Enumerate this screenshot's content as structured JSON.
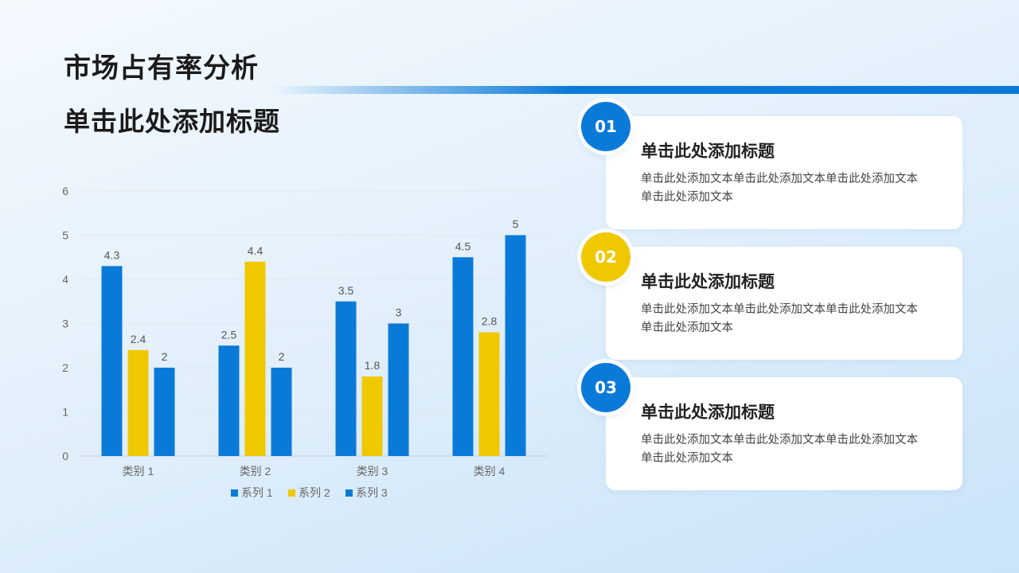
{
  "header": {
    "title": "市场占有率分析",
    "subtitle": "单击此处添加标题"
  },
  "colors": {
    "blue": "#0a7ad9",
    "yellow": "#f0c800"
  },
  "chart_data": {
    "type": "bar",
    "categories": [
      "类别 1",
      "类别 2",
      "类别 3",
      "类别 4"
    ],
    "series": [
      {
        "name": "系列 1",
        "values": [
          4.3,
          2.5,
          3.5,
          4.5
        ],
        "color": "#0a7ad9"
      },
      {
        "name": "系列 2",
        "values": [
          2.4,
          4.4,
          1.8,
          2.8
        ],
        "color": "#f0c800"
      },
      {
        "name": "系列 3",
        "values": [
          2,
          2,
          3,
          5
        ],
        "color": "#0a7ad9"
      }
    ],
    "ylim": [
      0,
      6
    ],
    "yticks": [
      0,
      1,
      2,
      3,
      4,
      5,
      6
    ],
    "grid": true,
    "data_labels": true,
    "legend": "bottom"
  },
  "cards": [
    {
      "number": "01",
      "title": "单击此处添加标题",
      "text": "单击此处添加文本单击此处添加文本单击此处添加文本单击此处添加文本",
      "badge_color": "#0a7ad9"
    },
    {
      "number": "02",
      "title": "单击此处添加标题",
      "text": "单击此处添加文本单击此处添加文本单击此处添加文本单击此处添加文本",
      "badge_color": "#f0c800"
    },
    {
      "number": "03",
      "title": "单击此处添加标题",
      "text": "单击此处添加文本单击此处添加文本单击此处添加文本单击此处添加文本",
      "badge_color": "#0a7ad9"
    }
  ]
}
